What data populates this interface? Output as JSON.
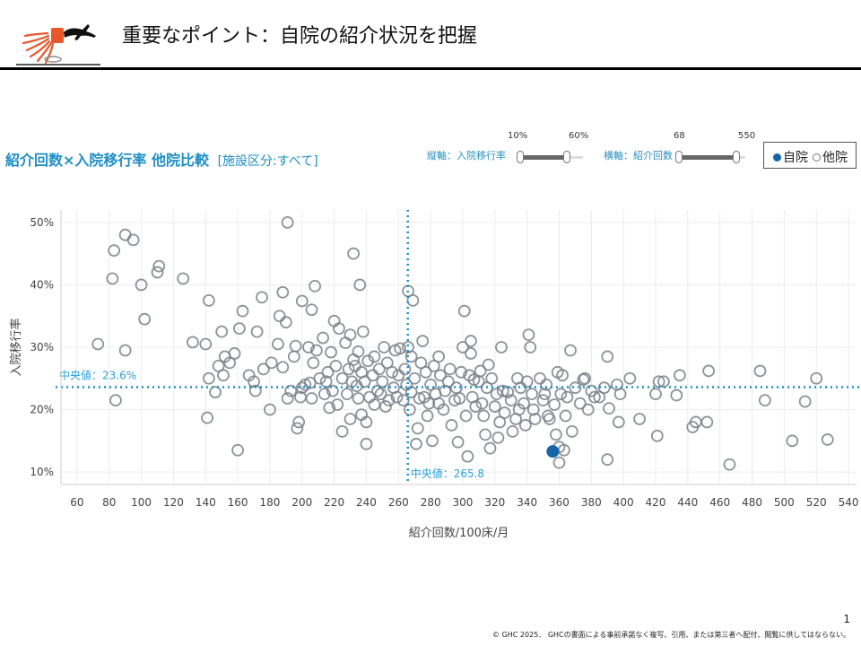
{
  "header": {
    "title": "重要なポイント：自院の紹介状況を把握"
  },
  "chart_title": {
    "main": "紹介回数×入院移行率 他院比較",
    "filter": "[施設区分:すべて]"
  },
  "sliders": {
    "vertical": {
      "label": "縦軸：入院移行率",
      "min_label": "10%",
      "max_label": "60%"
    },
    "horizontal": {
      "label": "横軸：紹介回数",
      "min_label": "68",
      "max_label": "550"
    }
  },
  "legend": {
    "self": "自院",
    "other": "他院"
  },
  "footer": {
    "page_number": "1",
    "copyright": "© GHC 2025． GHCの書面による事前承諾なく複写、引用、または第三者へ配付、閲覧に供してはならない。"
  },
  "colors": {
    "self_point": "#1565a8",
    "other_point": "#7a808a",
    "median_line": "#1f8fc2",
    "title_blue": "#1e8fc6"
  },
  "chart_data": {
    "type": "scatter",
    "xlabel": "紹介回数/100床/月",
    "ylabel": "入院移行率",
    "xlim": [
      50,
      545
    ],
    "ylim": [
      8,
      52
    ],
    "xticks": [
      60,
      80,
      100,
      120,
      140,
      160,
      180,
      200,
      220,
      240,
      260,
      280,
      300,
      320,
      340,
      360,
      380,
      400,
      420,
      440,
      460,
      480,
      500,
      520,
      540
    ],
    "yticks": [
      10,
      20,
      30,
      40,
      50
    ],
    "ytick_labels": [
      "10%",
      "20%",
      "30%",
      "40%",
      "50%"
    ],
    "grid": true,
    "medians": {
      "y": 23.6,
      "y_label": "中央値：23.6%",
      "x": 265.8,
      "x_label": "中央値：265.8"
    },
    "self_point": {
      "x": 356,
      "y": 13.3
    },
    "other_points": [
      [
        73,
        30.5
      ],
      [
        82,
        41
      ],
      [
        83,
        45.5
      ],
      [
        84,
        21.5
      ],
      [
        90,
        48
      ],
      [
        90,
        29.5
      ],
      [
        95,
        47.2
      ],
      [
        100,
        40
      ],
      [
        102,
        34.5
      ],
      [
        110,
        42
      ],
      [
        111,
        43
      ],
      [
        126,
        41
      ],
      [
        132,
        30.8
      ],
      [
        140,
        30.5
      ],
      [
        141,
        18.7
      ],
      [
        142,
        37.5
      ],
      [
        142,
        25
      ],
      [
        146,
        22.8
      ],
      [
        148,
        27
      ],
      [
        150,
        32.5
      ],
      [
        151,
        25.5
      ],
      [
        152,
        28.5
      ],
      [
        155,
        27.5
      ],
      [
        158,
        29
      ],
      [
        160,
        13.5
      ],
      [
        161,
        33
      ],
      [
        163,
        35.8
      ],
      [
        167,
        25.5
      ],
      [
        170,
        24.5
      ],
      [
        171,
        23
      ],
      [
        172,
        32.5
      ],
      [
        175,
        38
      ],
      [
        176,
        26.5
      ],
      [
        180,
        20
      ],
      [
        181,
        27.5
      ],
      [
        185,
        30.5
      ],
      [
        186,
        35
      ],
      [
        188,
        26.8
      ],
      [
        188,
        38.8
      ],
      [
        190,
        34
      ],
      [
        191,
        50
      ],
      [
        191,
        21.8
      ],
      [
        193,
        23
      ],
      [
        195,
        28.5
      ],
      [
        196,
        30.2
      ],
      [
        197,
        17
      ],
      [
        198,
        18
      ],
      [
        199,
        22
      ],
      [
        200,
        37.4
      ],
      [
        200,
        23.5
      ],
      [
        202,
        24
      ],
      [
        204,
        30
      ],
      [
        205,
        24.3
      ],
      [
        206,
        36
      ],
      [
        206,
        21.8
      ],
      [
        207,
        27.5
      ],
      [
        208,
        39.8
      ],
      [
        209,
        29.5
      ],
      [
        211,
        25
      ],
      [
        213,
        31.5
      ],
      [
        214,
        22.5
      ],
      [
        215,
        24.5
      ],
      [
        216,
        26
      ],
      [
        217,
        20.3
      ],
      [
        218,
        29.2
      ],
      [
        219,
        23
      ],
      [
        220,
        34.2
      ],
      [
        221,
        27
      ],
      [
        222,
        20.8
      ],
      [
        223,
        33
      ],
      [
        225,
        16.5
      ],
      [
        225,
        25
      ],
      [
        227,
        30.7
      ],
      [
        228,
        22.5
      ],
      [
        229,
        26.5
      ],
      [
        230,
        18.5
      ],
      [
        230,
        32
      ],
      [
        231,
        24.5
      ],
      [
        232,
        45
      ],
      [
        232,
        28
      ],
      [
        233,
        27
      ],
      [
        234,
        23.8
      ],
      [
        235,
        21.8
      ],
      [
        235,
        29.3
      ],
      [
        236,
        40
      ],
      [
        237,
        26
      ],
      [
        237,
        19.2
      ],
      [
        238,
        32.5
      ],
      [
        239,
        24.5
      ],
      [
        240,
        14.5
      ],
      [
        240,
        18
      ],
      [
        241,
        27.8
      ],
      [
        242,
        22
      ],
      [
        244,
        25.5
      ],
      [
        245,
        28.5
      ],
      [
        245,
        20.8
      ],
      [
        247,
        23
      ],
      [
        248,
        26.5
      ],
      [
        249,
        22.5
      ],
      [
        250,
        24.5
      ],
      [
        251,
        30
      ],
      [
        252,
        20.5
      ],
      [
        253,
        27.5
      ],
      [
        254,
        21.5
      ],
      [
        256,
        26
      ],
      [
        257,
        23.5
      ],
      [
        258,
        29.5
      ],
      [
        259,
        22
      ],
      [
        260,
        25.5
      ],
      [
        261,
        29.8
      ],
      [
        263,
        21.5
      ],
      [
        264,
        26.5
      ],
      [
        265,
        24
      ],
      [
        266,
        39
      ],
      [
        266,
        30
      ],
      [
        267,
        20
      ],
      [
        268,
        28.5
      ],
      [
        268,
        22.8
      ],
      [
        269,
        37.5
      ],
      [
        270,
        25
      ],
      [
        271,
        14.5
      ],
      [
        272,
        17
      ],
      [
        273,
        21.8
      ],
      [
        274,
        27.5
      ],
      [
        275,
        31
      ],
      [
        276,
        22
      ],
      [
        277,
        26
      ],
      [
        278,
        19
      ],
      [
        279,
        21
      ],
      [
        280,
        24
      ],
      [
        281,
        15
      ],
      [
        282,
        27
      ],
      [
        283,
        22.5
      ],
      [
        285,
        21
      ],
      [
        285,
        28.5
      ],
      [
        286,
        25.5
      ],
      [
        288,
        20
      ],
      [
        289,
        23
      ],
      [
        291,
        24.5
      ],
      [
        292,
        26.5
      ],
      [
        293,
        17.5
      ],
      [
        295,
        21.5
      ],
      [
        296,
        23.5
      ],
      [
        297,
        14.8
      ],
      [
        298,
        21.8
      ],
      [
        299,
        26
      ],
      [
        300,
        30
      ],
      [
        301,
        35.8
      ],
      [
        302,
        19
      ],
      [
        303,
        12.5
      ],
      [
        304,
        25.5
      ],
      [
        305,
        31
      ],
      [
        305,
        29
      ],
      [
        306,
        22
      ],
      [
        307,
        24.8
      ],
      [
        308,
        20.5
      ],
      [
        310,
        24.5
      ],
      [
        311,
        26.2
      ],
      [
        312,
        21
      ],
      [
        313,
        19
      ],
      [
        314,
        16
      ],
      [
        315,
        23.5
      ],
      [
        316,
        27.2
      ],
      [
        317,
        13.8
      ],
      [
        318,
        25
      ],
      [
        320,
        20.5
      ],
      [
        321,
        22.5
      ],
      [
        322,
        15.5
      ],
      [
        323,
        18
      ],
      [
        324,
        30
      ],
      [
        325,
        23
      ],
      [
        326,
        19.5
      ],
      [
        328,
        22.8
      ],
      [
        330,
        21.5
      ],
      [
        331,
        16.5
      ],
      [
        333,
        18.5
      ],
      [
        334,
        25
      ],
      [
        335,
        20
      ],
      [
        336,
        23.5
      ],
      [
        338,
        21
      ],
      [
        339,
        17.5
      ],
      [
        340,
        24.5
      ],
      [
        341,
        32
      ],
      [
        342,
        30
      ],
      [
        343,
        22.5
      ],
      [
        344,
        20
      ],
      [
        345,
        18.5
      ],
      [
        348,
        25
      ],
      [
        350,
        21.5
      ],
      [
        351,
        22.5
      ],
      [
        352,
        24
      ],
      [
        353,
        19
      ],
      [
        354,
        18.5
      ],
      [
        357,
        20.8
      ],
      [
        358,
        16
      ],
      [
        359,
        26
      ],
      [
        360,
        11.5
      ],
      [
        360,
        14
      ],
      [
        361,
        22.5
      ],
      [
        362,
        25.5
      ],
      [
        363,
        13.5
      ],
      [
        364,
        19
      ],
      [
        365,
        22
      ],
      [
        367,
        29.5
      ],
      [
        368,
        16.5
      ],
      [
        370,
        23.5
      ],
      [
        373,
        21
      ],
      [
        375,
        24.8
      ],
      [
        376,
        25
      ],
      [
        378,
        20
      ],
      [
        380,
        23
      ],
      [
        382,
        22
      ],
      [
        385,
        22
      ],
      [
        388,
        23.5
      ],
      [
        390,
        28.5
      ],
      [
        390,
        12
      ],
      [
        391,
        20.2
      ],
      [
        396,
        24
      ],
      [
        397,
        18
      ],
      [
        398,
        22.5
      ],
      [
        404,
        25
      ],
      [
        410,
        18.5
      ],
      [
        420,
        22.5
      ],
      [
        421,
        15.8
      ],
      [
        422,
        24.5
      ],
      [
        425,
        24.5
      ],
      [
        433,
        22.3
      ],
      [
        435,
        25.5
      ],
      [
        443,
        17.2
      ],
      [
        445,
        18
      ],
      [
        452,
        18
      ],
      [
        453,
        26.2
      ],
      [
        466,
        11.2
      ],
      [
        485,
        26.2
      ],
      [
        488,
        21.5
      ],
      [
        505,
        15
      ],
      [
        513,
        21.3
      ],
      [
        520,
        25
      ],
      [
        527,
        15.2
      ]
    ]
  }
}
